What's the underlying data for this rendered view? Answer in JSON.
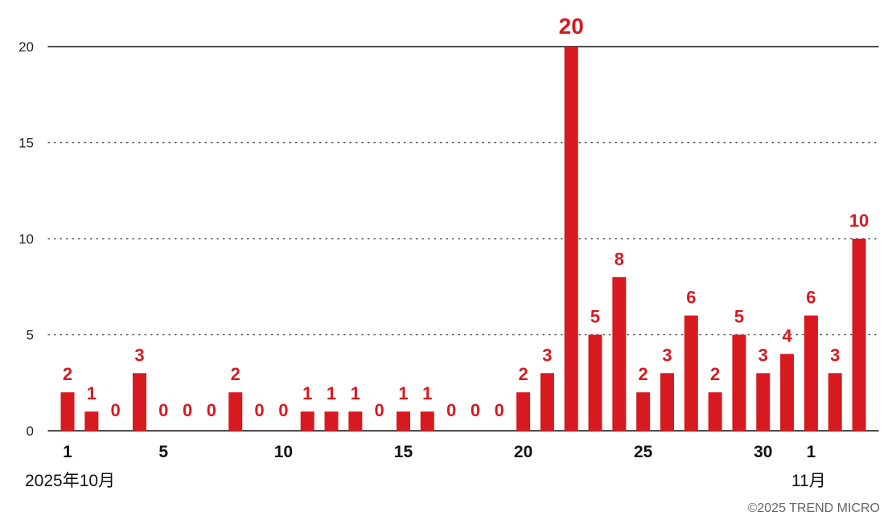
{
  "chart_data": {
    "type": "bar",
    "x": [
      1,
      2,
      3,
      4,
      5,
      6,
      7,
      8,
      9,
      10,
      11,
      12,
      13,
      14,
      15,
      16,
      17,
      18,
      19,
      20,
      21,
      22,
      23,
      24,
      25,
      26,
      27,
      28,
      29,
      30,
      31,
      1,
      2,
      3
    ],
    "values": [
      2,
      1,
      0,
      3,
      0,
      0,
      0,
      2,
      0,
      0,
      1,
      1,
      1,
      0,
      1,
      1,
      0,
      0,
      0,
      2,
      3,
      20,
      5,
      8,
      2,
      3,
      6,
      2,
      5,
      3,
      4,
      6,
      3,
      10
    ],
    "x_tick_labels": [
      {
        "index": 0,
        "label": "1"
      },
      {
        "index": 4,
        "label": "5"
      },
      {
        "index": 9,
        "label": "10"
      },
      {
        "index": 14,
        "label": "15"
      },
      {
        "index": 19,
        "label": "20"
      },
      {
        "index": 24,
        "label": "25"
      },
      {
        "index": 29,
        "label": "30"
      },
      {
        "index": 31,
        "label": "1"
      }
    ],
    "y_ticks": [
      0,
      5,
      10,
      15,
      20
    ],
    "ylim": [
      0,
      20
    ],
    "highlight_index": 21,
    "grid": "dotted horizontal",
    "month_labels": {
      "start": "2025年10月",
      "second": "11月"
    },
    "colors": {
      "bar": "#d71920",
      "label": "#d71920",
      "grid": "#555555",
      "axis": "#111111"
    }
  },
  "footer": {
    "copyright": "©2025 TREND MICRO"
  }
}
